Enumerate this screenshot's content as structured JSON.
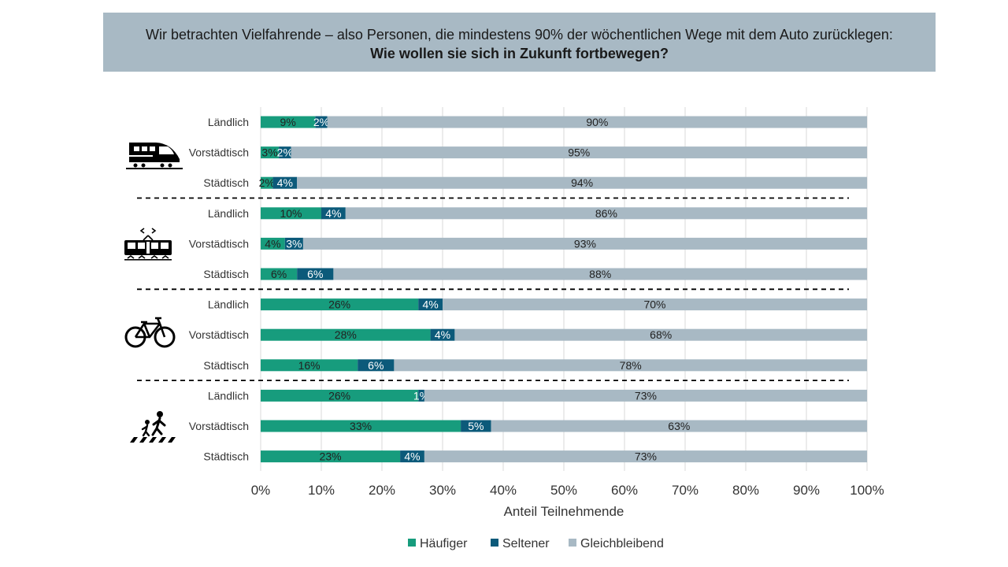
{
  "header": {
    "line1": "Wir betrachten Vielfahrende – also Personen, die mindestens 90% der wöchentlichen Wege mit dem Auto zurücklegen:",
    "line2": "Wie wollen sie sich in Zukunft fortbewegen?"
  },
  "colors": {
    "haeufiger": "#179c7d",
    "seltener": "#0c5a7a",
    "gleich": "#a8b9c4"
  },
  "icons": [
    "train-icon",
    "tram-icon",
    "bicycle-icon",
    "pedestrian-icon"
  ],
  "chart_data": {
    "type": "bar",
    "orientation": "horizontal",
    "stacked": true,
    "xlabel": "Anteil Teilnehmende",
    "xlim": [
      0,
      100
    ],
    "xticks": [
      "0%",
      "10%",
      "20%",
      "30%",
      "40%",
      "50%",
      "60%",
      "70%",
      "80%",
      "90%",
      "100%"
    ],
    "grid": true,
    "legend_position": "bottom",
    "series_names": [
      "Häufiger",
      "Seltener",
      "Gleichbleibend"
    ],
    "groups": [
      {
        "icon": "train-icon",
        "rows": [
          {
            "label": "Ländlich",
            "values": [
              9,
              2,
              90
            ]
          },
          {
            "label": "Vorstädtisch",
            "values": [
              3,
              2,
              95
            ]
          },
          {
            "label": "Städtisch",
            "values": [
              2,
              4,
              94
            ]
          }
        ]
      },
      {
        "icon": "tram-icon",
        "rows": [
          {
            "label": "Ländlich",
            "values": [
              10,
              4,
              86
            ]
          },
          {
            "label": "Vorstädtisch",
            "values": [
              4,
              3,
              93
            ]
          },
          {
            "label": "Städtisch",
            "values": [
              6,
              6,
              88
            ]
          }
        ]
      },
      {
        "icon": "bicycle-icon",
        "rows": [
          {
            "label": "Ländlich",
            "values": [
              26,
              4,
              70
            ]
          },
          {
            "label": "Vorstädtisch",
            "values": [
              28,
              4,
              68
            ]
          },
          {
            "label": "Städtisch",
            "values": [
              16,
              6,
              78
            ]
          }
        ]
      },
      {
        "icon": "pedestrian-icon",
        "rows": [
          {
            "label": "Ländlich",
            "values": [
              26,
              1,
              73
            ]
          },
          {
            "label": "Vorstädtisch",
            "values": [
              33,
              5,
              63
            ]
          },
          {
            "label": "Städtisch",
            "values": [
              23,
              4,
              73
            ]
          }
        ]
      }
    ]
  }
}
